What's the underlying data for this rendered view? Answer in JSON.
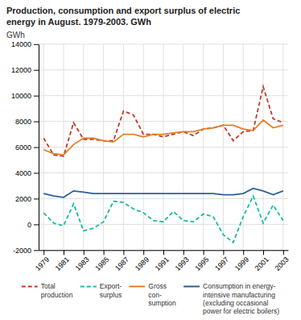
{
  "chart_data": {
    "type": "line",
    "title": "Production, consumption and export surplus of electric\nenergy in August. 1979-2003. GWh",
    "ylabel": "GWh",
    "x": [
      1979,
      1980,
      1981,
      1982,
      1983,
      1984,
      1985,
      1986,
      1987,
      1988,
      1989,
      1990,
      1991,
      1992,
      1993,
      1994,
      1995,
      1996,
      1997,
      1998,
      1999,
      2000,
      2001,
      2002,
      2003
    ],
    "series": [
      {
        "name": "Total\nproduction",
        "color": "#c0392b",
        "line_style": "dashed",
        "values": [
          6700,
          5400,
          5300,
          7900,
          6600,
          6600,
          6500,
          6500,
          8800,
          8500,
          7000,
          7000,
          6800,
          7000,
          7200,
          6900,
          7400,
          7500,
          7700,
          6500,
          7200,
          7300,
          10700,
          8200,
          7900
        ]
      },
      {
        "name": "Export-\nsurplus",
        "color": "#1abc9c",
        "line_style": "dashed",
        "values": [
          900,
          100,
          -100,
          1600,
          -500,
          -300,
          200,
          1800,
          1700,
          1200,
          900,
          300,
          200,
          1000,
          300,
          200,
          800,
          600,
          -800,
          -1400,
          600,
          2200,
          100,
          1500,
          300
        ]
      },
      {
        "name": "Gross\ncon-\nsumption",
        "color": "#e67e22",
        "line_style": "solid",
        "values": [
          5800,
          5500,
          5400,
          6200,
          6700,
          6700,
          6500,
          6400,
          7000,
          7000,
          6800,
          7000,
          7000,
          7100,
          7200,
          7200,
          7400,
          7500,
          7700,
          7700,
          7400,
          7300,
          8100,
          7500,
          7700
        ]
      },
      {
        "name": "Consumption in energy-\nintensive manufacturing\n(excluding occasional\npower for electric boilers)",
        "color": "#2c5f9e",
        "line_style": "solid",
        "values": [
          2400,
          2200,
          2100,
          2600,
          2500,
          2400,
          2400,
          2400,
          2400,
          2400,
          2400,
          2400,
          2400,
          2400,
          2400,
          2400,
          2400,
          2400,
          2300,
          2300,
          2400,
          2800,
          2600,
          2300,
          2600
        ]
      }
    ],
    "xlim": [
      1978.5,
      2003.5
    ],
    "xticks": [
      1979,
      1981,
      1983,
      1985,
      1987,
      1989,
      1991,
      1993,
      1995,
      1997,
      1999,
      2001,
      2003
    ],
    "ylim": [
      -2000,
      14000
    ],
    "yticks": [
      -2000,
      0,
      2000,
      4000,
      6000,
      8000,
      10000,
      12000,
      14000
    ],
    "grid": true,
    "legend": "bottom"
  }
}
